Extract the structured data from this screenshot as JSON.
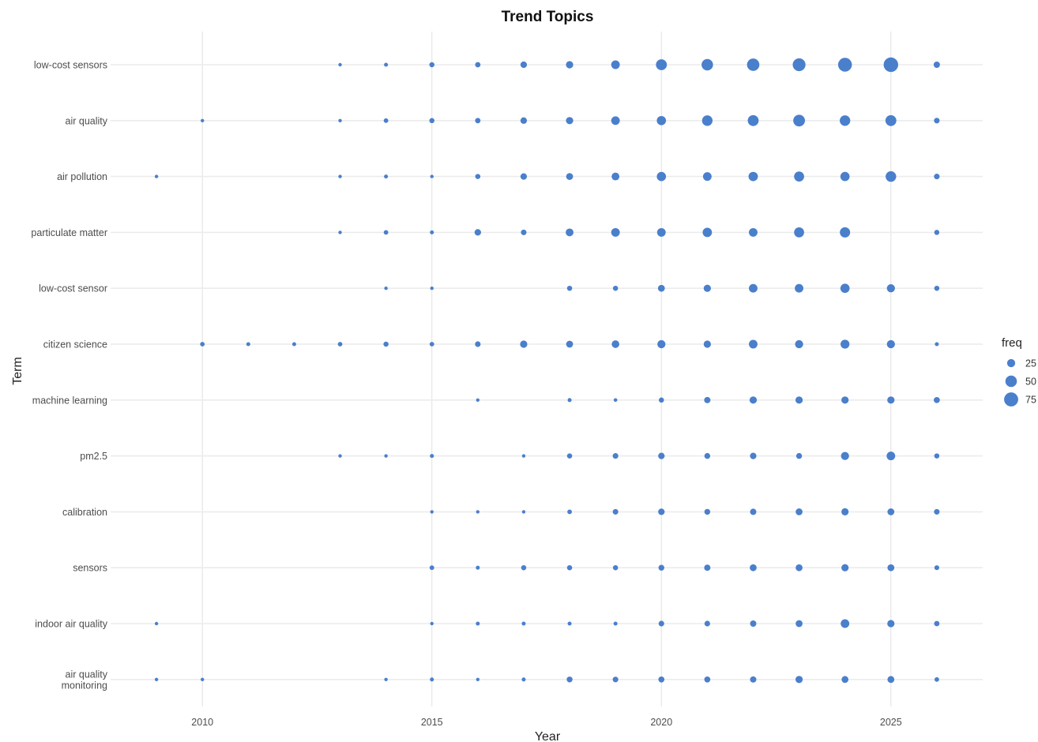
{
  "chart_data": {
    "type": "scatter",
    "title": "Trend Topics",
    "xlabel": "Year",
    "ylabel": "Term",
    "xlim": [
      2008,
      2027
    ],
    "x_ticks": [
      2010,
      2015,
      2020,
      2025
    ],
    "x_tick_labels": [
      "2010",
      "2015",
      "2020",
      "2025"
    ],
    "grid": true,
    "marker_color": "#4a7fcc",
    "legend": {
      "title": "freq",
      "placement": "right",
      "values": [
        25,
        50,
        75
      ],
      "labels": [
        "25",
        "50",
        "75"
      ]
    },
    "terms": [
      "low-cost sensors",
      "air quality",
      "air pollution",
      "particulate matter",
      "low-cost sensor",
      "citizen science",
      "machine learning",
      "pm2.5",
      "calibration",
      "sensors",
      "indoor air quality",
      "air quality\nmonitoring"
    ],
    "years": [
      2009,
      2010,
      2011,
      2012,
      2013,
      2014,
      2015,
      2016,
      2017,
      2018,
      2019,
      2020,
      2021,
      2022,
      2023,
      2024,
      2025,
      2026
    ],
    "series": [
      {
        "term": "low-cost sensors",
        "freq": [
          0,
          0,
          0,
          0,
          3,
          6,
          10,
          11,
          16,
          20,
          28,
          45,
          50,
          58,
          62,
          72,
          80,
          15
        ]
      },
      {
        "term": "air quality",
        "freq": [
          0,
          3,
          0,
          0,
          3,
          8,
          10,
          11,
          16,
          20,
          28,
          32,
          42,
          45,
          52,
          42,
          45,
          12
        ]
      },
      {
        "term": "air pollution",
        "freq": [
          3,
          0,
          0,
          0,
          3,
          6,
          3,
          10,
          16,
          18,
          23,
          32,
          28,
          33,
          38,
          32,
          42,
          12
        ]
      },
      {
        "term": "particulate matter",
        "freq": [
          0,
          0,
          0,
          0,
          3,
          8,
          6,
          16,
          12,
          23,
          28,
          28,
          33,
          28,
          38,
          40,
          0,
          10
        ]
      },
      {
        "term": "low-cost sensor",
        "freq": [
          0,
          0,
          0,
          0,
          0,
          3,
          3,
          0,
          0,
          10,
          10,
          18,
          20,
          28,
          28,
          32,
          25,
          10
        ]
      },
      {
        "term": "citizen science",
        "freq": [
          0,
          8,
          6,
          6,
          8,
          10,
          8,
          12,
          20,
          18,
          22,
          25,
          20,
          28,
          25,
          30,
          25,
          6
        ]
      },
      {
        "term": "machine learning",
        "freq": [
          0,
          0,
          0,
          0,
          0,
          0,
          0,
          3,
          0,
          6,
          5,
          10,
          15,
          20,
          20,
          20,
          20,
          14
        ]
      },
      {
        "term": "pm2.5",
        "freq": [
          0,
          0,
          0,
          0,
          3,
          3,
          6,
          0,
          3,
          10,
          12,
          16,
          13,
          16,
          13,
          25,
          28,
          10
        ]
      },
      {
        "term": "calibration",
        "freq": [
          0,
          0,
          0,
          0,
          0,
          0,
          3,
          3,
          3,
          8,
          12,
          16,
          13,
          15,
          18,
          20,
          18,
          12
        ]
      },
      {
        "term": "sensors",
        "freq": [
          0,
          0,
          0,
          0,
          0,
          0,
          8,
          6,
          10,
          10,
          10,
          13,
          15,
          18,
          18,
          20,
          18,
          9
        ]
      },
      {
        "term": "indoor air quality",
        "freq": [
          3,
          0,
          0,
          0,
          0,
          0,
          3,
          6,
          6,
          6,
          6,
          12,
          12,
          15,
          18,
          28,
          20,
          11
        ]
      },
      {
        "term": "air quality\nmonitoring",
        "freq": [
          3,
          3,
          0,
          0,
          0,
          3,
          6,
          3,
          6,
          13,
          12,
          14,
          14,
          15,
          20,
          18,
          18,
          8
        ]
      }
    ]
  }
}
